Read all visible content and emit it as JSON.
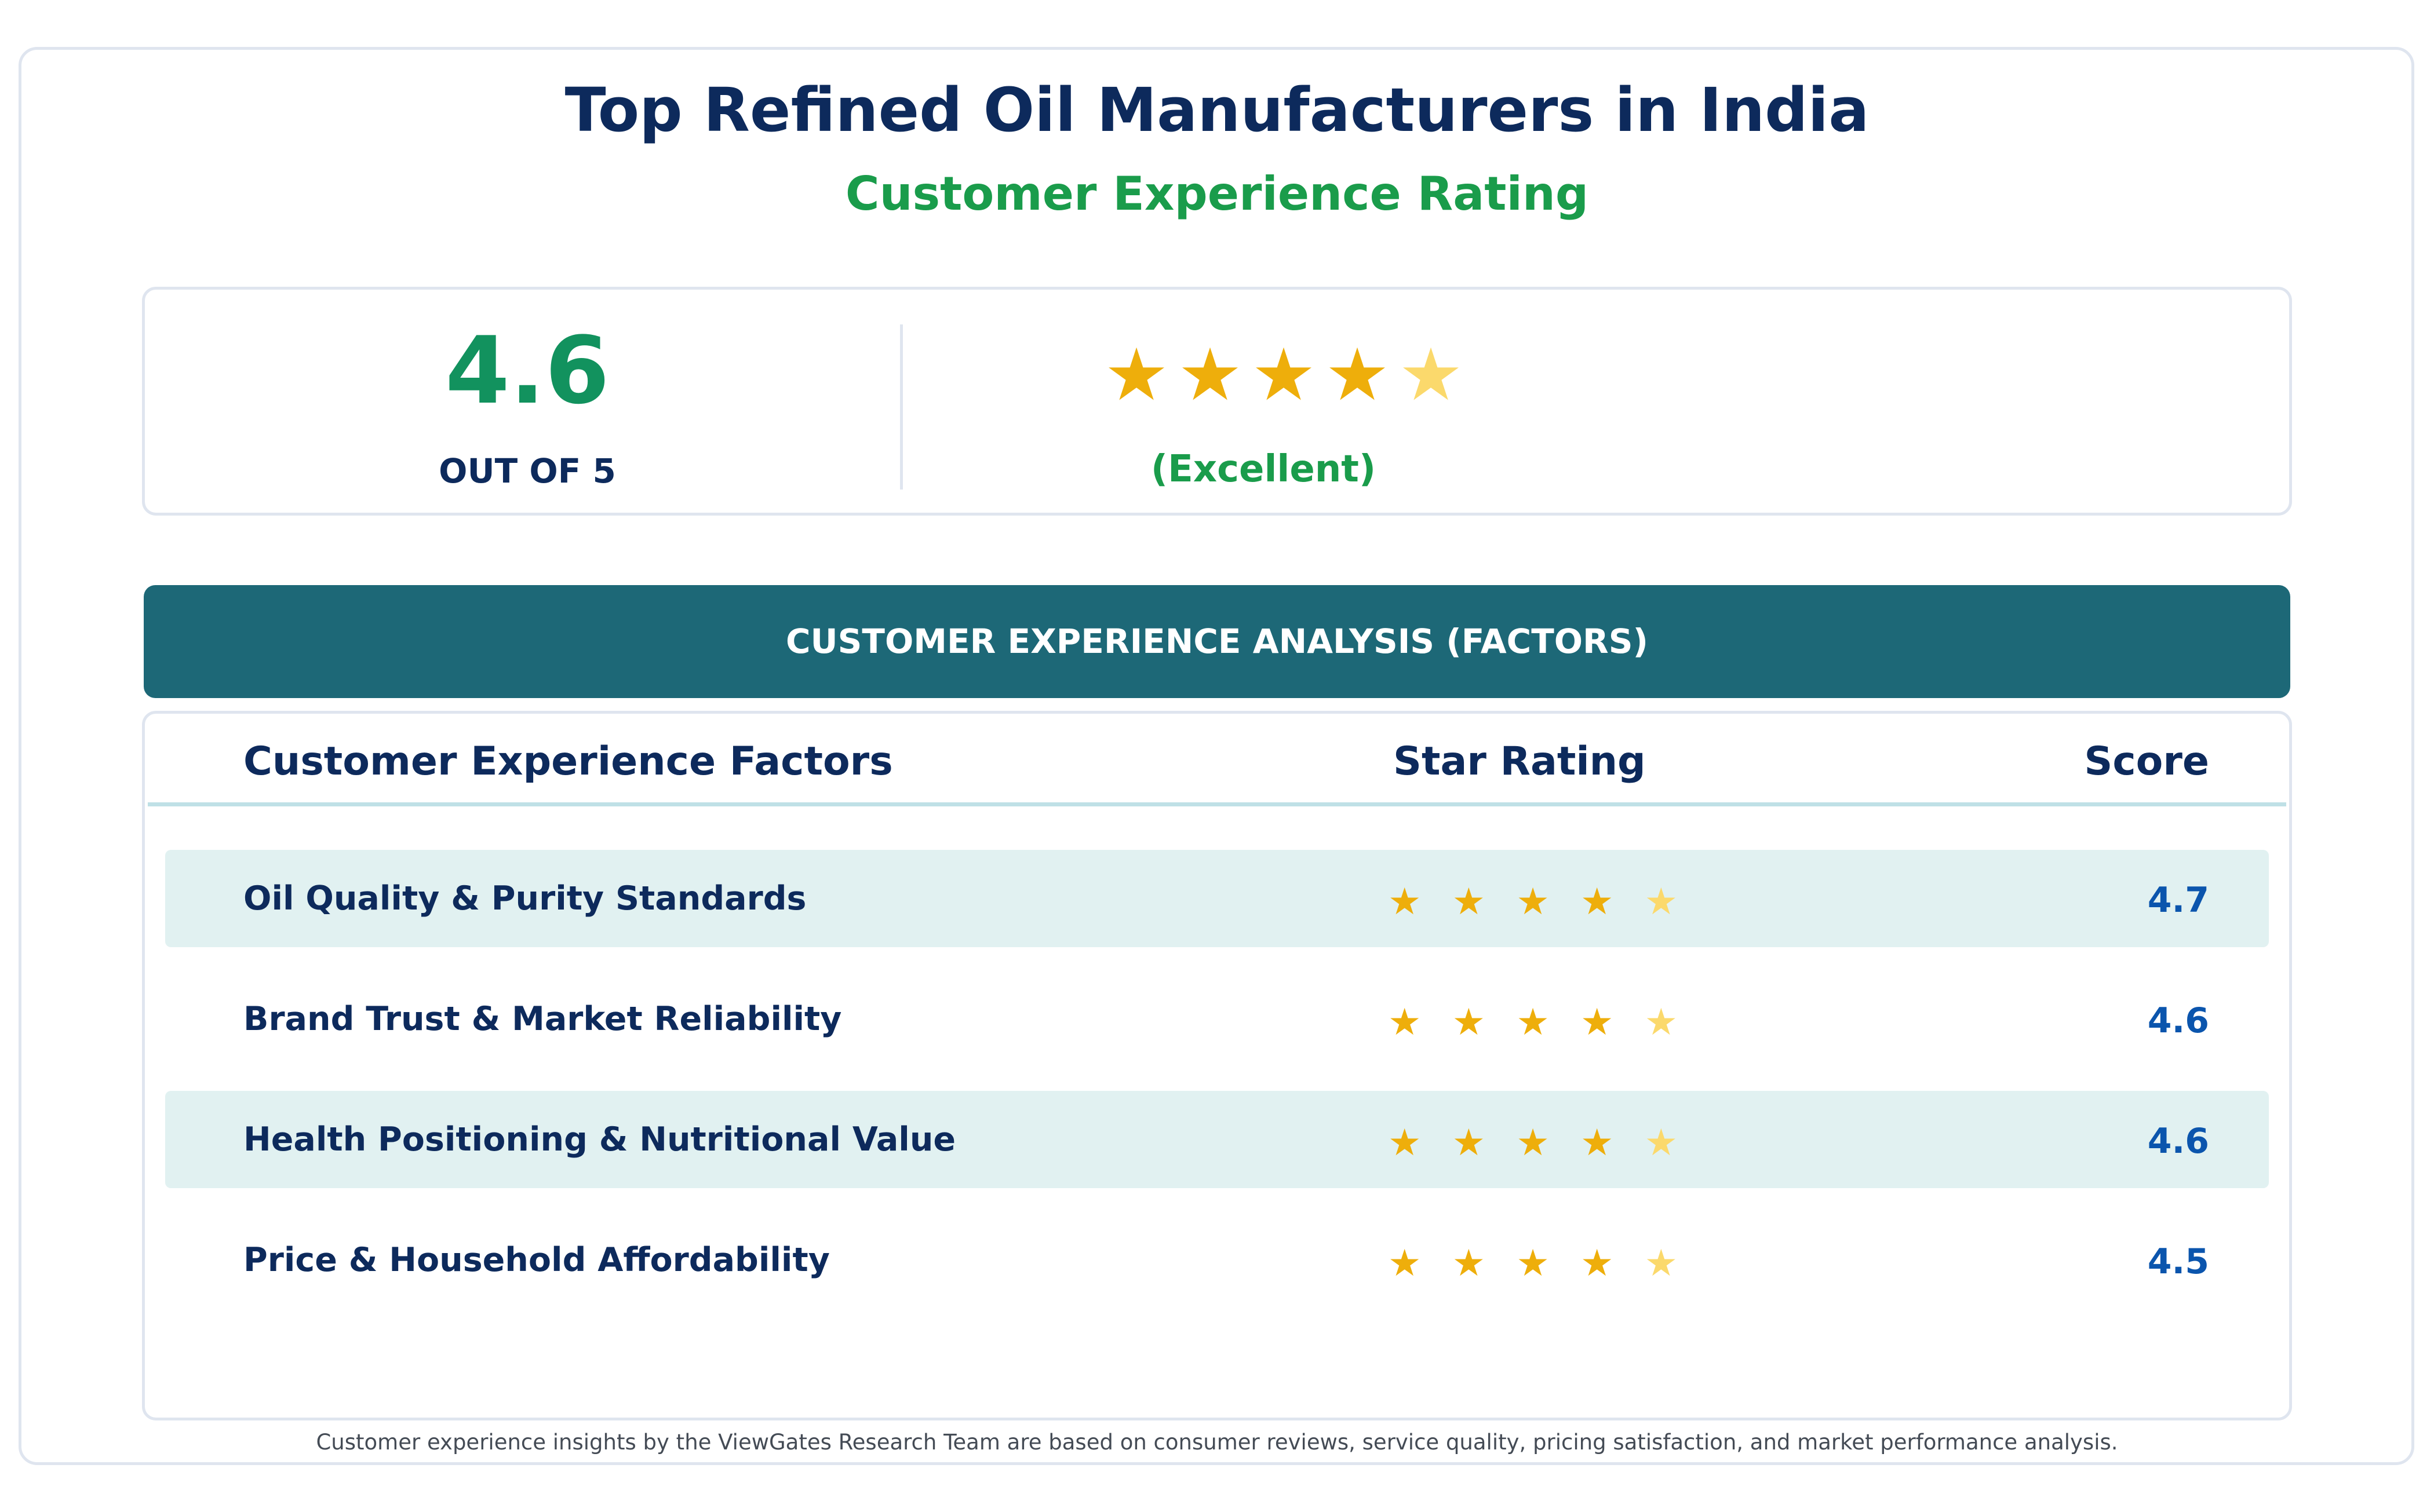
{
  "title": "Top Refined Oil Manufacturers in India",
  "subtitle": "Customer Experience Rating",
  "summary": {
    "score": "4.6",
    "out_of": "OUT OF 5",
    "stars": [
      "★",
      "★",
      "★",
      "★",
      "★"
    ],
    "stars_filled": 4,
    "label": "(Excellent)"
  },
  "analysis_header": "CUSTOMER EXPERIENCE ANALYSIS (FACTORS)",
  "table": {
    "columns": [
      "Customer Experience Factors",
      "Star Rating",
      "Score"
    ],
    "rows": [
      {
        "factor": "Oil Quality & Purity Standards",
        "stars": [
          "★",
          "★",
          "★",
          "★",
          "★"
        ],
        "stars_filled": 4,
        "score": "4.7"
      },
      {
        "factor": "Brand Trust & Market Reliability",
        "stars": [
          "★",
          "★",
          "★",
          "★",
          "★"
        ],
        "stars_filled": 4,
        "score": "4.6"
      },
      {
        "factor": "Health Positioning & Nutritional Value",
        "stars": [
          "★",
          "★",
          "★",
          "★",
          "★"
        ],
        "stars_filled": 4,
        "score": "4.6"
      },
      {
        "factor": "Price & Household Affordability",
        "stars": [
          "★",
          "★",
          "★",
          "★",
          "★"
        ],
        "stars_filled": 4,
        "score": "4.5"
      }
    ]
  },
  "footnote": "Customer experience insights by the ViewGates Research Team are based on consumer reviews, service quality, pricing satisfaction, and market performance analysis.",
  "colors": {
    "title": "#0d2a5c",
    "accent_green": "#1a9c4b",
    "score_green": "#12925e",
    "header_teal": "#1d6877",
    "row_shade": "#e1f1f1",
    "star_full": "#eeae0b",
    "star_light": "#fbd96c",
    "score_blue": "#0b55ad"
  }
}
